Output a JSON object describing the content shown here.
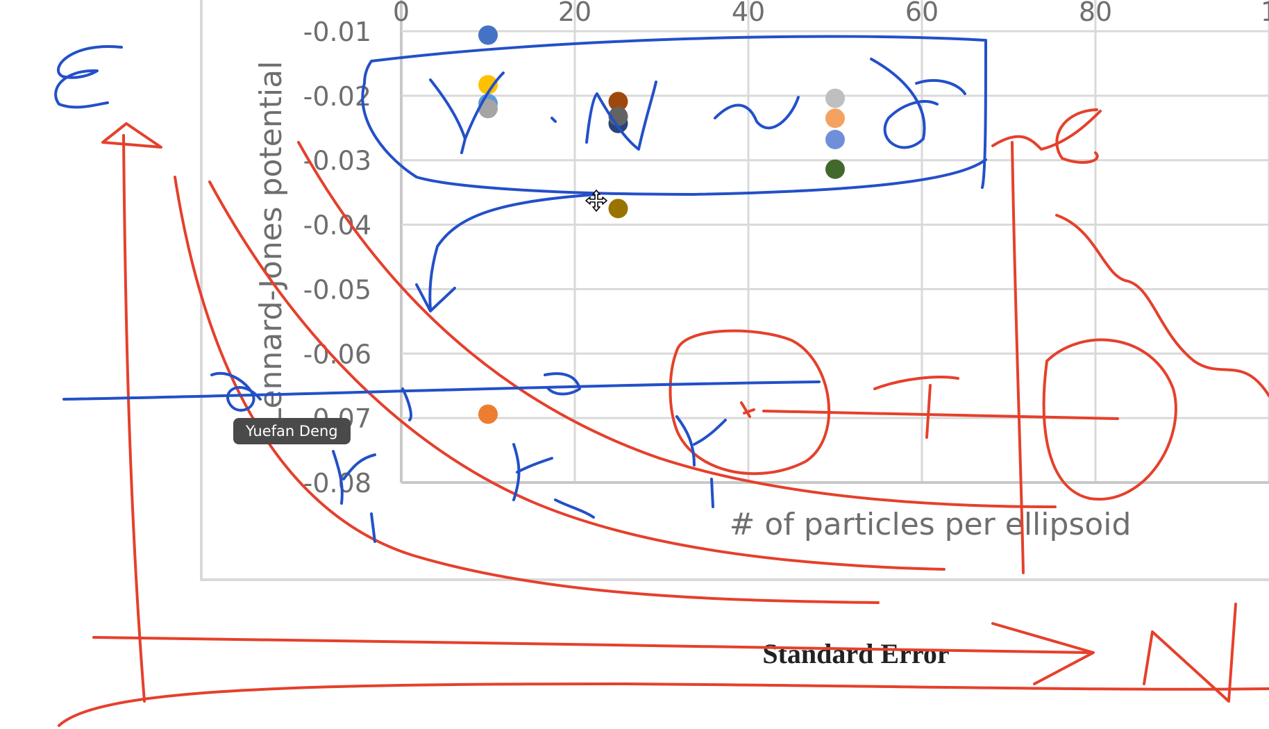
{
  "chart_data": {
    "type": "scatter",
    "xlabel": "# of particles per ellipsoid",
    "ylabel": "Lennard-Jones potential",
    "xlim": [
      0,
      100
    ],
    "ylim": [
      -0.08,
      -0.01
    ],
    "x_ticks": [
      "0",
      "20",
      "40",
      "60",
      "80",
      "1"
    ],
    "y_ticks": [
      "-0.01",
      "-0.02",
      "-0.03",
      "-0.04",
      "-0.05",
      "-0.06",
      "-0.07",
      "-0.08"
    ],
    "grid": true,
    "points": [
      {
        "x": 10,
        "y": -0.0106,
        "color": "#4472c4"
      },
      {
        "x": 10,
        "y": -0.0183,
        "color": "#ffc000"
      },
      {
        "x": 10,
        "y": -0.0212,
        "color": "#5b9bd5"
      },
      {
        "x": 10,
        "y": -0.022,
        "color": "#a5a5a5"
      },
      {
        "x": 10,
        "y": -0.0694,
        "color": "#ed7d31"
      },
      {
        "x": 25,
        "y": -0.0209,
        "color": "#9e480e"
      },
      {
        "x": 25,
        "y": -0.0243,
        "color": "#264478"
      },
      {
        "x": 25,
        "y": -0.0232,
        "color": "#636363"
      },
      {
        "x": 25,
        "y": -0.0375,
        "color": "#997300"
      },
      {
        "x": 50,
        "y": -0.0204,
        "color": "#bfbfbf"
      },
      {
        "x": 50,
        "y": -0.0235,
        "color": "#f4a261"
      },
      {
        "x": 50,
        "y": -0.0268,
        "color": "#6f8fd8"
      },
      {
        "x": 50,
        "y": -0.0314,
        "color": "#43682b"
      }
    ]
  },
  "caption": "Standard Error",
  "tooltip": "Yuefan Deng",
  "ink_colors": {
    "red": "#e5402c",
    "blue": "#2350c8"
  },
  "cursor_icon": "move-cursor-icon"
}
